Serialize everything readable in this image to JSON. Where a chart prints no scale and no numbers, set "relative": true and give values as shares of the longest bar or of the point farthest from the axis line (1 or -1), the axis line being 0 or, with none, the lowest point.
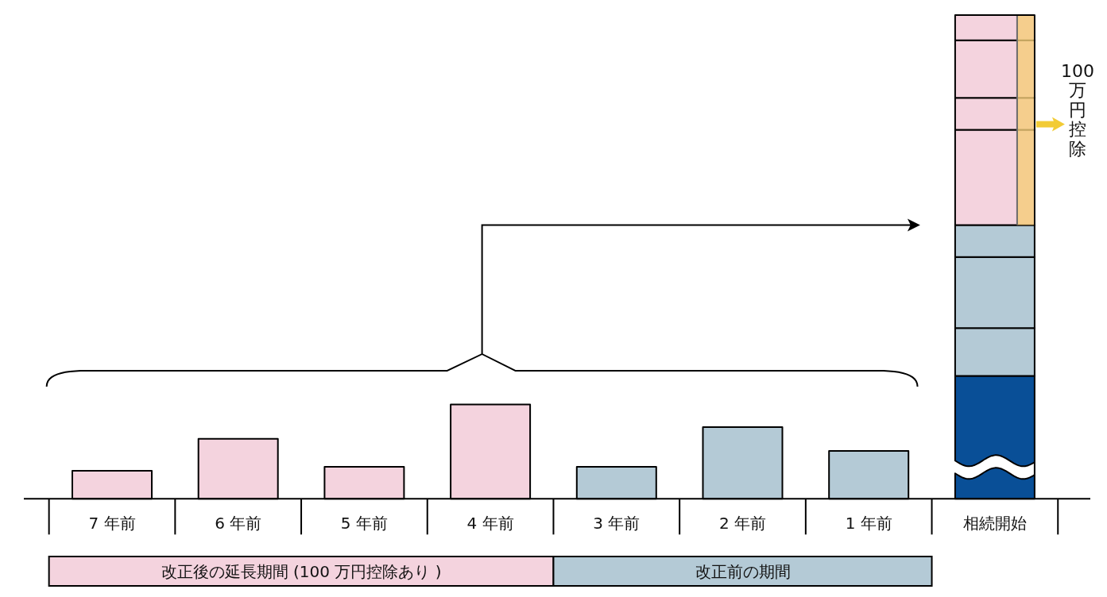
{
  "chart_data": {
    "type": "bar",
    "stacked": true,
    "relative": true,
    "categories": [
      "7 年前",
      "6 年前",
      "5 年前",
      "4 年前",
      "3 年前",
      "2 年前",
      "1 年前",
      "相続開始"
    ],
    "series": [
      {
        "color": "#094f97",
        "values": [
          null,
          null,
          null,
          null,
          null,
          null,
          null,
          0.254
        ]
      },
      {
        "color": "#b4cad6",
        "values": [
          null,
          null,
          null,
          null,
          null,
          null,
          0.099,
          0.099
        ]
      },
      {
        "color": "#b4cad6",
        "values": [
          null,
          null,
          null,
          null,
          null,
          0.148,
          null,
          0.147
        ]
      },
      {
        "color": "#b4cad6",
        "values": [
          null,
          null,
          null,
          null,
          0.066,
          null,
          null,
          0.066
        ]
      },
      {
        "color": "#f4d3de",
        "values": [
          null,
          null,
          null,
          0.195,
          null,
          null,
          null,
          0.197
        ]
      },
      {
        "color": "#f4d3de",
        "values": [
          null,
          null,
          0.066,
          null,
          null,
          null,
          null,
          0.066
        ]
      },
      {
        "color": "#f4d3de",
        "values": [
          null,
          0.124,
          null,
          null,
          null,
          null,
          null,
          0.119
        ]
      },
      {
        "color": "#f4d3de",
        "values": [
          0.058,
          null,
          null,
          null,
          null,
          null,
          null,
          0.052
        ]
      }
    ],
    "annotations": [
      "改正後の延長期間 (100 万円控除あり )",
      "改正前の期間",
      "100万円控除"
    ]
  }
}
